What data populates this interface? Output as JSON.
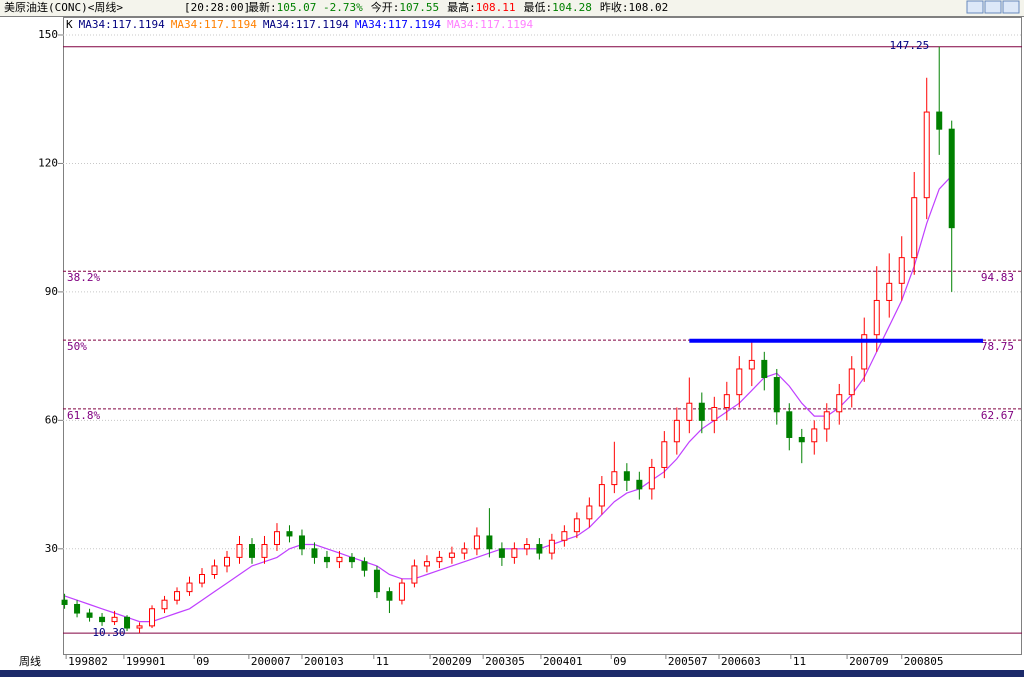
{
  "header": {
    "symbol": "美原油连(CONC)<周线>",
    "time": "[20:28:00]",
    "quotes": [
      {
        "label": "最新:",
        "value": "105.07 -2.73%",
        "color": "#008000"
      },
      {
        "label": "今开:",
        "value": "107.55",
        "color": "#008000"
      },
      {
        "label": "最高:",
        "value": "108.11",
        "color": "#ff0000"
      },
      {
        "label": "最低:",
        "value": "104.28",
        "color": "#008000"
      },
      {
        "label": "昨收:",
        "value": "108.02",
        "color": "#000000"
      }
    ]
  },
  "chart_data": {
    "type": "candlestick",
    "x_label": "周线",
    "legend": [
      {
        "text": "K",
        "color": "#000000"
      },
      {
        "text": "MA34:117.1194",
        "color": "#000080"
      },
      {
        "text": "MA34:117.1194",
        "color": "#ff8000"
      },
      {
        "text": "MA34:117.1194",
        "color": "#000080"
      },
      {
        "text": "MA34:117.1194",
        "color": "#0000ff"
      },
      {
        "text": "MA34:117.1194",
        "color": "#ff80ff"
      }
    ],
    "x": [
      0,
      8,
      16,
      24,
      32,
      40,
      48,
      56,
      64,
      72,
      80,
      88,
      96,
      104,
      112,
      120,
      128,
      136,
      144,
      152,
      160,
      168,
      176,
      184,
      192,
      200,
      208,
      216,
      224,
      232,
      240,
      248,
      256,
      264,
      272,
      280,
      288,
      296,
      304,
      312,
      320,
      328,
      336,
      344,
      352,
      360,
      368,
      376,
      384,
      392,
      400,
      408,
      416,
      424,
      432,
      440,
      448,
      456,
      464,
      472,
      480,
      488,
      496,
      504,
      512,
      520,
      528,
      536,
      544,
      552,
      560,
      568
    ],
    "open": [
      18,
      17,
      15,
      14,
      13,
      14,
      11.5,
      12,
      16,
      18,
      20,
      22,
      24,
      26,
      28,
      31,
      28,
      31,
      34,
      33,
      30,
      28,
      27,
      28,
      27,
      25,
      20,
      18,
      22,
      26,
      27,
      28,
      29,
      30,
      33,
      30,
      28,
      30,
      31,
      29,
      32,
      34,
      37,
      40,
      45,
      48,
      46,
      44,
      49,
      55,
      60,
      64,
      60,
      63,
      66,
      72,
      74,
      70,
      62,
      56,
      55,
      58,
      62,
      66,
      72,
      80,
      88,
      92,
      98,
      112,
      132,
      128
    ],
    "high": [
      19.5,
      18,
      16,
      15,
      15.5,
      14.5,
      12.8,
      16.8,
      19,
      21,
      23.5,
      25.5,
      27.5,
      29.5,
      33,
      32.5,
      33,
      36,
      35.5,
      34.5,
      31.5,
      29.5,
      29.5,
      29,
      28,
      26,
      21,
      23,
      27.5,
      28.5,
      29.5,
      30.5,
      31.5,
      35,
      39.5,
      31.5,
      31.5,
      32.5,
      32.5,
      33.5,
      35.5,
      38.5,
      42,
      47,
      55,
      50,
      48,
      51,
      57.5,
      63,
      70,
      66.5,
      65.5,
      69,
      75,
      78.5,
      76,
      72,
      64,
      58,
      60,
      64,
      68.5,
      75,
      84,
      96,
      99,
      103,
      118,
      140,
      147.25,
      130
    ],
    "low": [
      16,
      14,
      13,
      12,
      12.2,
      10.8,
      10.3,
      11.5,
      15,
      17,
      19,
      21,
      23,
      24.5,
      26.5,
      26.5,
      26.5,
      29.5,
      31.5,
      28.5,
      26.5,
      25.5,
      25.5,
      25.5,
      23.5,
      18.5,
      15,
      17,
      21,
      24.5,
      25.5,
      26.5,
      27.5,
      28.5,
      28,
      26,
      26.5,
      28.5,
      27.5,
      27.5,
      30.5,
      32.5,
      35,
      38,
      43,
      43.5,
      41.5,
      41.5,
      46.5,
      52,
      57,
      57,
      57,
      60,
      63,
      68,
      67,
      59,
      53,
      50,
      52,
      55,
      59,
      63,
      69,
      76,
      84,
      88,
      94,
      107,
      122,
      90
    ],
    "close": [
      17,
      15,
      14,
      13,
      14,
      11.5,
      12,
      16,
      18,
      20,
      22,
      24,
      26,
      28,
      31,
      28,
      31,
      34,
      33,
      30,
      28,
      27,
      28,
      27,
      25,
      20,
      18,
      22,
      26,
      27,
      28,
      29,
      30,
      33,
      30,
      28,
      30,
      31,
      29,
      32,
      34,
      37,
      40,
      45,
      48,
      46,
      44,
      49,
      55,
      60,
      64,
      60,
      63,
      66,
      72,
      74,
      70,
      62,
      56,
      55,
      58,
      62,
      66,
      72,
      80,
      88,
      92,
      98,
      112,
      132,
      128,
      105
    ],
    "up_color": "#ff0000",
    "down_color": "#008000",
    "ma": {
      "name": "MA34",
      "color": "#c040ff",
      "values": [
        19,
        18,
        17,
        16,
        15,
        14,
        13,
        13,
        14,
        15,
        16,
        18,
        20,
        22,
        24,
        26,
        27,
        28,
        30,
        31,
        31,
        30,
        29,
        28,
        27,
        26,
        24,
        23,
        23,
        24,
        25,
        26,
        27,
        28,
        29,
        30,
        30,
        30,
        30,
        31,
        32,
        33,
        35,
        38,
        41,
        43,
        44,
        46,
        48,
        51,
        55,
        58,
        60,
        62,
        64,
        67,
        70,
        71,
        68,
        64,
        61,
        61,
        63,
        66,
        70,
        76,
        82,
        88,
        96,
        106,
        114,
        117.1194
      ]
    },
    "xlim": [
      -1,
      613
    ],
    "ylim": [
      5.2,
      154.2
    ],
    "yticks": [
      30,
      60,
      90,
      120,
      150
    ],
    "xticks": [
      {
        "value": 1,
        "label": "199802"
      },
      {
        "value": 38,
        "label": "199901"
      },
      {
        "value": 83,
        "label": "09"
      },
      {
        "value": 118,
        "label": "200007"
      },
      {
        "value": 152,
        "label": "200103"
      },
      {
        "value": 198,
        "label": "11"
      },
      {
        "value": 234,
        "label": "200209"
      },
      {
        "value": 268,
        "label": "200305"
      },
      {
        "value": 305,
        "label": "200401"
      },
      {
        "value": 350,
        "label": "09"
      },
      {
        "value": 385,
        "label": "200507"
      },
      {
        "value": 419,
        "label": "200603"
      },
      {
        "value": 465,
        "label": "11"
      },
      {
        "value": 501,
        "label": "200709"
      },
      {
        "value": 536,
        "label": "200805"
      }
    ],
    "grid": true,
    "fib_levels": [
      {
        "label": "38.2%",
        "value": 94.83
      },
      {
        "label": "50%",
        "value": 78.75
      },
      {
        "label": "61.8%",
        "value": 62.67
      }
    ],
    "extremes": [
      {
        "value": 147.25,
        "label": "147.25"
      },
      {
        "value": 10.3,
        "label": "10.30"
      }
    ],
    "support_line": {
      "value": 78.6,
      "x": [
        400,
        588
      ],
      "color": "#0000ff"
    }
  }
}
